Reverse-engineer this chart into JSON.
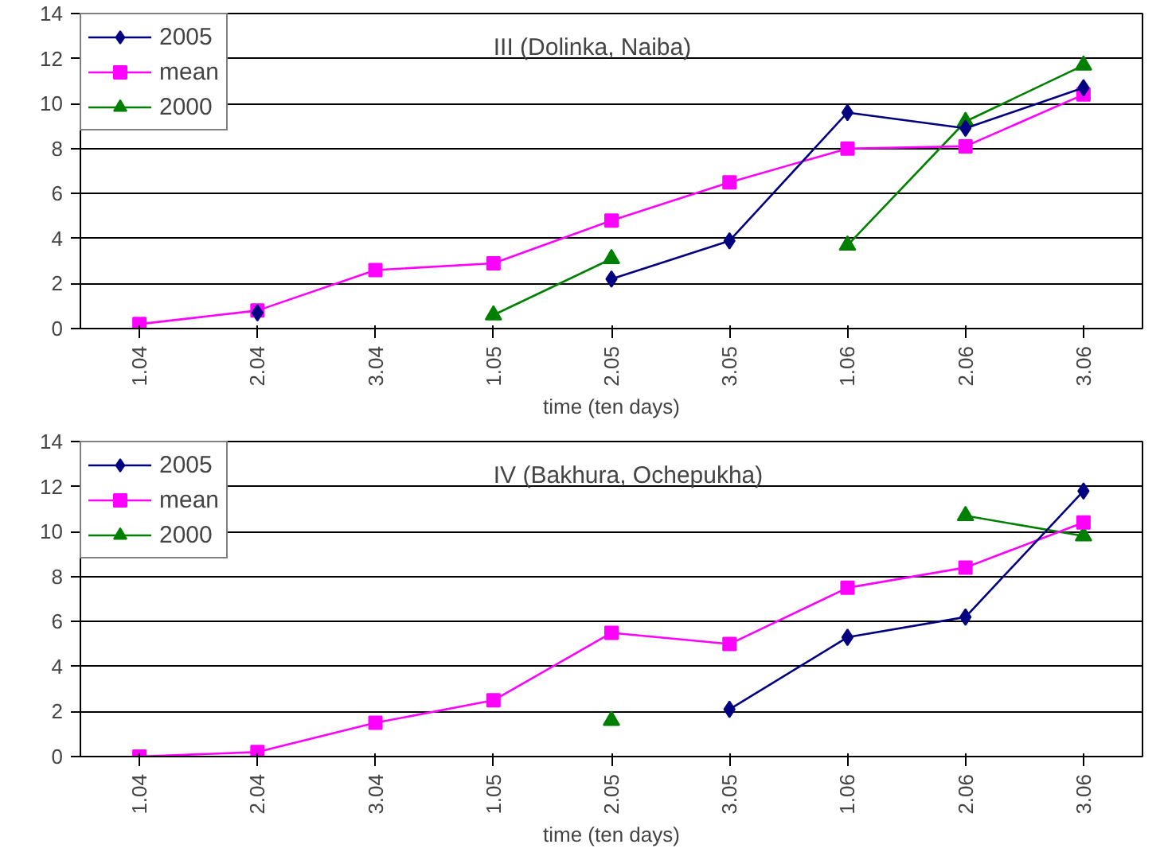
{
  "chart_data": [
    {
      "type": "line",
      "title": "III (Dolinka, Naiba)",
      "xlabel": "time (ten days)",
      "categories": [
        "1.04",
        "2.04",
        "3.04",
        "1.05",
        "2.05",
        "3.05",
        "1.06",
        "2.06",
        "3.06"
      ],
      "series": [
        {
          "name": "2005",
          "color": "#000080",
          "marker": "diamond",
          "values": [
            null,
            0.7,
            null,
            null,
            2.2,
            3.9,
            9.6,
            8.9,
            10.7
          ]
        },
        {
          "name": "mean",
          "color": "#ff00ff",
          "marker": "square",
          "values": [
            0.2,
            0.8,
            2.6,
            2.9,
            4.8,
            6.5,
            8.0,
            8.1,
            10.4
          ]
        },
        {
          "name": "2000",
          "color": "#008000",
          "marker": "triangle",
          "values": [
            null,
            null,
            null,
            0.6,
            3.1,
            null,
            3.7,
            9.2,
            11.7
          ]
        }
      ],
      "ylim": [
        0,
        14
      ],
      "yticks": [
        0,
        2,
        4,
        6,
        8,
        10,
        12,
        14
      ],
      "grid": "y",
      "legend": "top left",
      "line_style": "solid"
    },
    {
      "type": "line",
      "title": "IV (Bakhura, Ochepukha)",
      "xlabel": "time (ten days)",
      "categories": [
        "1.04",
        "2.04",
        "3.04",
        "1.05",
        "2.05",
        "3.05",
        "1.06",
        "2.06",
        "3.06"
      ],
      "series": [
        {
          "name": "2005",
          "color": "#000080",
          "marker": "diamond",
          "values": [
            null,
            null,
            null,
            null,
            null,
            2.1,
            5.3,
            6.2,
            11.8
          ]
        },
        {
          "name": "mean",
          "color": "#ff00ff",
          "marker": "square",
          "values": [
            0,
            0.2,
            1.5,
            2.5,
            5.5,
            5.0,
            7.5,
            8.4,
            10.4
          ]
        },
        {
          "name": "2000",
          "color": "#008000",
          "marker": "triangle",
          "values": [
            null,
            null,
            null,
            null,
            1.6,
            null,
            null,
            10.7,
            9.8
          ]
        }
      ],
      "ylim": [
        0,
        14
      ],
      "yticks": [
        0,
        2,
        4,
        6,
        8,
        10,
        12,
        14
      ],
      "grid": "y",
      "legend": "top left",
      "line_style": "solid"
    }
  ]
}
